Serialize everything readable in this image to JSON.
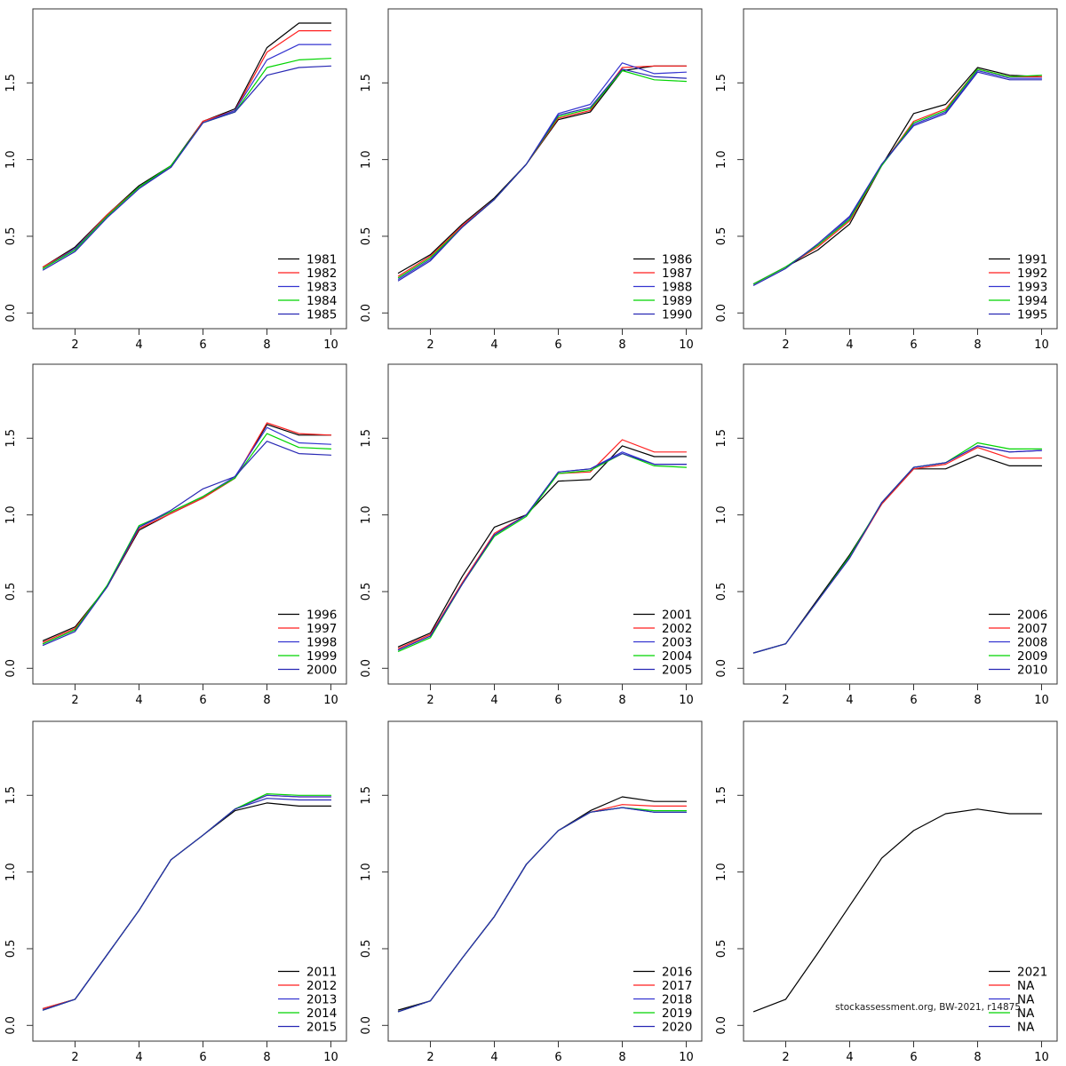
{
  "watermark": "stockassessment.org, BW-2021, r14875",
  "x_axis": {
    "tick_labels": [
      "2",
      "4",
      "6",
      "8",
      "10"
    ],
    "tick_values": [
      2,
      4,
      6,
      8,
      10
    ]
  },
  "y_axis": {
    "tick_labels": [
      "0.0",
      "0.5",
      "1.0",
      "1.5"
    ],
    "tick_values": [
      0,
      0.5,
      1.0,
      1.5
    ]
  },
  "palette": {
    "line1": "#000000",
    "line2": "#ff1f1f",
    "line3": "#3434d0",
    "line4": "#00d400",
    "line5": "#2828b4"
  },
  "chart_data": [
    {
      "type": "line",
      "x": [
        1,
        2,
        3,
        4,
        5,
        6,
        7,
        8,
        9,
        10
      ],
      "x_ticks": [
        2,
        4,
        6,
        8,
        10
      ],
      "y_ticks": [
        0,
        0.5,
        1.0,
        1.5
      ],
      "ylim": [
        -0.1,
        1.98
      ],
      "grid": false,
      "legend_position": "bottom-right",
      "series": [
        {
          "name": "1981",
          "color": "#000000",
          "values": [
            0.3,
            0.43,
            0.64,
            0.83,
            0.96,
            1.25,
            1.33,
            1.73,
            1.89,
            1.89
          ]
        },
        {
          "name": "1982",
          "color": "#ff1f1f",
          "values": [
            0.3,
            0.42,
            0.64,
            0.82,
            0.95,
            1.25,
            1.32,
            1.7,
            1.84,
            1.84
          ]
        },
        {
          "name": "1983",
          "color": "#3434d0",
          "values": [
            0.29,
            0.42,
            0.63,
            0.82,
            0.95,
            1.24,
            1.32,
            1.65,
            1.75,
            1.75
          ]
        },
        {
          "name": "1984",
          "color": "#00d400",
          "values": [
            0.29,
            0.41,
            0.63,
            0.82,
            0.96,
            1.24,
            1.31,
            1.6,
            1.65,
            1.66
          ]
        },
        {
          "name": "1985",
          "color": "#2828b4",
          "values": [
            0.28,
            0.4,
            0.62,
            0.81,
            0.95,
            1.24,
            1.31,
            1.55,
            1.6,
            1.61
          ]
        }
      ]
    },
    {
      "type": "line",
      "x": [
        1,
        2,
        3,
        4,
        5,
        6,
        7,
        8,
        9,
        10
      ],
      "x_ticks": [
        2,
        4,
        6,
        8,
        10
      ],
      "y_ticks": [
        0,
        0.5,
        1.0,
        1.5
      ],
      "ylim": [
        -0.1,
        1.98
      ],
      "grid": false,
      "legend_position": "bottom-right",
      "series": [
        {
          "name": "1986",
          "color": "#000000",
          "values": [
            0.26,
            0.38,
            0.58,
            0.75,
            0.97,
            1.26,
            1.31,
            1.58,
            1.61,
            1.61
          ]
        },
        {
          "name": "1987",
          "color": "#ff1f1f",
          "values": [
            0.24,
            0.37,
            0.57,
            0.74,
            0.97,
            1.27,
            1.32,
            1.6,
            1.61,
            1.61
          ]
        },
        {
          "name": "1988",
          "color": "#3434d0",
          "values": [
            0.22,
            0.35,
            0.56,
            0.74,
            0.97,
            1.3,
            1.36,
            1.63,
            1.56,
            1.57
          ]
        },
        {
          "name": "1989",
          "color": "#00d400",
          "values": [
            0.23,
            0.36,
            0.56,
            0.74,
            0.97,
            1.28,
            1.33,
            1.58,
            1.52,
            1.51
          ]
        },
        {
          "name": "1990",
          "color": "#2828b4",
          "values": [
            0.21,
            0.34,
            0.56,
            0.74,
            0.97,
            1.29,
            1.34,
            1.59,
            1.54,
            1.53
          ]
        }
      ]
    },
    {
      "type": "line",
      "x": [
        1,
        2,
        3,
        4,
        5,
        6,
        7,
        8,
        9,
        10
      ],
      "x_ticks": [
        2,
        4,
        6,
        8,
        10
      ],
      "y_ticks": [
        0,
        0.5,
        1.0,
        1.5
      ],
      "ylim": [
        -0.1,
        1.98
      ],
      "grid": false,
      "legend_position": "bottom-right",
      "series": [
        {
          "name": "1991",
          "color": "#000000",
          "values": [
            0.19,
            0.3,
            0.41,
            0.58,
            0.96,
            1.3,
            1.36,
            1.6,
            1.55,
            1.54
          ]
        },
        {
          "name": "1992",
          "color": "#ff1f1f",
          "values": [
            0.19,
            0.3,
            0.43,
            0.6,
            0.96,
            1.25,
            1.33,
            1.59,
            1.54,
            1.54
          ]
        },
        {
          "name": "1993",
          "color": "#3434d0",
          "values": [
            0.19,
            0.3,
            0.44,
            0.62,
            0.96,
            1.23,
            1.31,
            1.58,
            1.53,
            1.53
          ]
        },
        {
          "name": "1994",
          "color": "#00d400",
          "values": [
            0.19,
            0.3,
            0.44,
            0.61,
            0.96,
            1.24,
            1.32,
            1.59,
            1.54,
            1.55
          ]
        },
        {
          "name": "1995",
          "color": "#2828b4",
          "values": [
            0.18,
            0.29,
            0.45,
            0.63,
            0.97,
            1.22,
            1.3,
            1.57,
            1.52,
            1.52
          ]
        }
      ]
    },
    {
      "type": "line",
      "x": [
        1,
        2,
        3,
        4,
        5,
        6,
        7,
        8,
        9,
        10
      ],
      "x_ticks": [
        2,
        4,
        6,
        8,
        10
      ],
      "y_ticks": [
        0,
        0.5,
        1.0,
        1.5
      ],
      "ylim": [
        -0.1,
        1.98
      ],
      "grid": false,
      "legend_position": "bottom-right",
      "series": [
        {
          "name": "1996",
          "color": "#000000",
          "values": [
            0.18,
            0.27,
            0.53,
            0.9,
            1.01,
            1.11,
            1.24,
            1.59,
            1.52,
            1.52
          ]
        },
        {
          "name": "1997",
          "color": "#ff1f1f",
          "values": [
            0.17,
            0.26,
            0.53,
            0.91,
            1.01,
            1.11,
            1.24,
            1.6,
            1.53,
            1.52
          ]
        },
        {
          "name": "1998",
          "color": "#3434d0",
          "values": [
            0.16,
            0.25,
            0.53,
            0.92,
            1.02,
            1.12,
            1.25,
            1.57,
            1.47,
            1.46
          ]
        },
        {
          "name": "1999",
          "color": "#00d400",
          "values": [
            0.16,
            0.25,
            0.54,
            0.93,
            1.02,
            1.12,
            1.24,
            1.53,
            1.44,
            1.43
          ]
        },
        {
          "name": "2000",
          "color": "#2828b4",
          "values": [
            0.15,
            0.24,
            0.53,
            0.92,
            1.03,
            1.17,
            1.25,
            1.48,
            1.4,
            1.39
          ]
        }
      ]
    },
    {
      "type": "line",
      "x": [
        1,
        2,
        3,
        4,
        5,
        6,
        7,
        8,
        9,
        10
      ],
      "x_ticks": [
        2,
        4,
        6,
        8,
        10
      ],
      "y_ticks": [
        0,
        0.5,
        1.0,
        1.5
      ],
      "ylim": [
        -0.1,
        1.98
      ],
      "grid": false,
      "legend_position": "bottom-right",
      "series": [
        {
          "name": "2001",
          "color": "#000000",
          "values": [
            0.14,
            0.23,
            0.6,
            0.92,
            1.0,
            1.22,
            1.23,
            1.45,
            1.38,
            1.38
          ]
        },
        {
          "name": "2002",
          "color": "#ff1f1f",
          "values": [
            0.13,
            0.22,
            0.56,
            0.88,
            1.0,
            1.27,
            1.28,
            1.49,
            1.41,
            1.41
          ]
        },
        {
          "name": "2003",
          "color": "#3434d0",
          "values": [
            0.12,
            0.21,
            0.55,
            0.87,
            1.0,
            1.28,
            1.3,
            1.41,
            1.33,
            1.33
          ]
        },
        {
          "name": "2004",
          "color": "#00d400",
          "values": [
            0.11,
            0.2,
            0.55,
            0.86,
            0.99,
            1.27,
            1.29,
            1.4,
            1.32,
            1.31
          ]
        },
        {
          "name": "2005",
          "color": "#2828b4",
          "values": [
            0.12,
            0.21,
            0.55,
            0.87,
            1.0,
            1.28,
            1.3,
            1.4,
            1.33,
            1.33
          ]
        }
      ]
    },
    {
      "type": "line",
      "x": [
        1,
        2,
        3,
        4,
        5,
        6,
        7,
        8,
        9,
        10
      ],
      "x_ticks": [
        2,
        4,
        6,
        8,
        10
      ],
      "y_ticks": [
        0,
        0.5,
        1.0,
        1.5
      ],
      "ylim": [
        -0.1,
        1.98
      ],
      "grid": false,
      "legend_position": "bottom-right",
      "series": [
        {
          "name": "2006",
          "color": "#000000",
          "values": [
            0.1,
            0.16,
            0.45,
            0.74,
            1.07,
            1.3,
            1.3,
            1.39,
            1.32,
            1.32
          ]
        },
        {
          "name": "2007",
          "color": "#ff1f1f",
          "values": [
            0.1,
            0.16,
            0.44,
            0.72,
            1.07,
            1.3,
            1.33,
            1.44,
            1.37,
            1.37
          ]
        },
        {
          "name": "2008",
          "color": "#3434d0",
          "values": [
            0.1,
            0.16,
            0.44,
            0.72,
            1.08,
            1.31,
            1.34,
            1.45,
            1.41,
            1.42
          ]
        },
        {
          "name": "2009",
          "color": "#00d400",
          "values": [
            0.1,
            0.16,
            0.44,
            0.73,
            1.08,
            1.31,
            1.34,
            1.47,
            1.43,
            1.43
          ]
        },
        {
          "name": "2010",
          "color": "#2828b4",
          "values": [
            0.1,
            0.16,
            0.44,
            0.72,
            1.08,
            1.31,
            1.34,
            1.45,
            1.41,
            1.42
          ]
        }
      ]
    },
    {
      "type": "line",
      "x": [
        1,
        2,
        3,
        4,
        5,
        6,
        7,
        8,
        9,
        10
      ],
      "x_ticks": [
        2,
        4,
        6,
        8,
        10
      ],
      "y_ticks": [
        0,
        0.5,
        1.0,
        1.5
      ],
      "ylim": [
        -0.1,
        1.98
      ],
      "grid": false,
      "legend_position": "bottom-right",
      "series": [
        {
          "name": "2011",
          "color": "#000000",
          "values": [
            0.11,
            0.17,
            0.46,
            0.75,
            1.08,
            1.24,
            1.4,
            1.45,
            1.43,
            1.43
          ]
        },
        {
          "name": "2012",
          "color": "#ff1f1f",
          "values": [
            0.11,
            0.17,
            0.46,
            0.75,
            1.08,
            1.24,
            1.41,
            1.5,
            1.49,
            1.49
          ]
        },
        {
          "name": "2013",
          "color": "#3434d0",
          "values": [
            0.1,
            0.17,
            0.46,
            0.75,
            1.08,
            1.24,
            1.41,
            1.5,
            1.49,
            1.49
          ]
        },
        {
          "name": "2014",
          "color": "#00d400",
          "values": [
            0.1,
            0.17,
            0.46,
            0.75,
            1.08,
            1.24,
            1.41,
            1.51,
            1.5,
            1.5
          ]
        },
        {
          "name": "2015",
          "color": "#2828b4",
          "values": [
            0.1,
            0.17,
            0.46,
            0.75,
            1.08,
            1.24,
            1.41,
            1.48,
            1.47,
            1.47
          ]
        }
      ]
    },
    {
      "type": "line",
      "x": [
        1,
        2,
        3,
        4,
        5,
        6,
        7,
        8,
        9,
        10
      ],
      "x_ticks": [
        2,
        4,
        6,
        8,
        10
      ],
      "y_ticks": [
        0,
        0.5,
        1.0,
        1.5
      ],
      "ylim": [
        -0.1,
        1.98
      ],
      "grid": false,
      "legend_position": "bottom-right",
      "series": [
        {
          "name": "2016",
          "color": "#000000",
          "values": [
            0.1,
            0.16,
            0.44,
            0.71,
            1.05,
            1.27,
            1.4,
            1.49,
            1.46,
            1.46
          ]
        },
        {
          "name": "2017",
          "color": "#ff1f1f",
          "values": [
            0.09,
            0.16,
            0.44,
            0.71,
            1.05,
            1.27,
            1.39,
            1.44,
            1.43,
            1.43
          ]
        },
        {
          "name": "2018",
          "color": "#3434d0",
          "values": [
            0.09,
            0.16,
            0.44,
            0.71,
            1.05,
            1.27,
            1.39,
            1.42,
            1.39,
            1.39
          ]
        },
        {
          "name": "2019",
          "color": "#00d400",
          "values": [
            0.09,
            0.16,
            0.44,
            0.71,
            1.05,
            1.27,
            1.39,
            1.42,
            1.4,
            1.4
          ]
        },
        {
          "name": "2020",
          "color": "#2828b4",
          "values": [
            0.09,
            0.16,
            0.44,
            0.71,
            1.05,
            1.27,
            1.39,
            1.42,
            1.39,
            1.39
          ]
        }
      ]
    },
    {
      "type": "line",
      "x": [
        1,
        2,
        3,
        4,
        5,
        6,
        7,
        8,
        9,
        10
      ],
      "x_ticks": [
        2,
        4,
        6,
        8,
        10
      ],
      "y_ticks": [
        0,
        0.5,
        1.0,
        1.5
      ],
      "ylim": [
        -0.1,
        1.98
      ],
      "grid": false,
      "legend_position": "bottom-right",
      "series": [
        {
          "name": "2021",
          "color": "#000000",
          "values": [
            0.09,
            0.17,
            0.47,
            0.78,
            1.09,
            1.27,
            1.38,
            1.41,
            1.38,
            1.38
          ]
        },
        {
          "name": "NA",
          "color": "#ff1f1f",
          "values": []
        },
        {
          "name": "NA",
          "color": "#3434d0",
          "values": []
        },
        {
          "name": "NA",
          "color": "#00d400",
          "values": []
        },
        {
          "name": "NA",
          "color": "#2828b4",
          "values": []
        }
      ]
    }
  ]
}
